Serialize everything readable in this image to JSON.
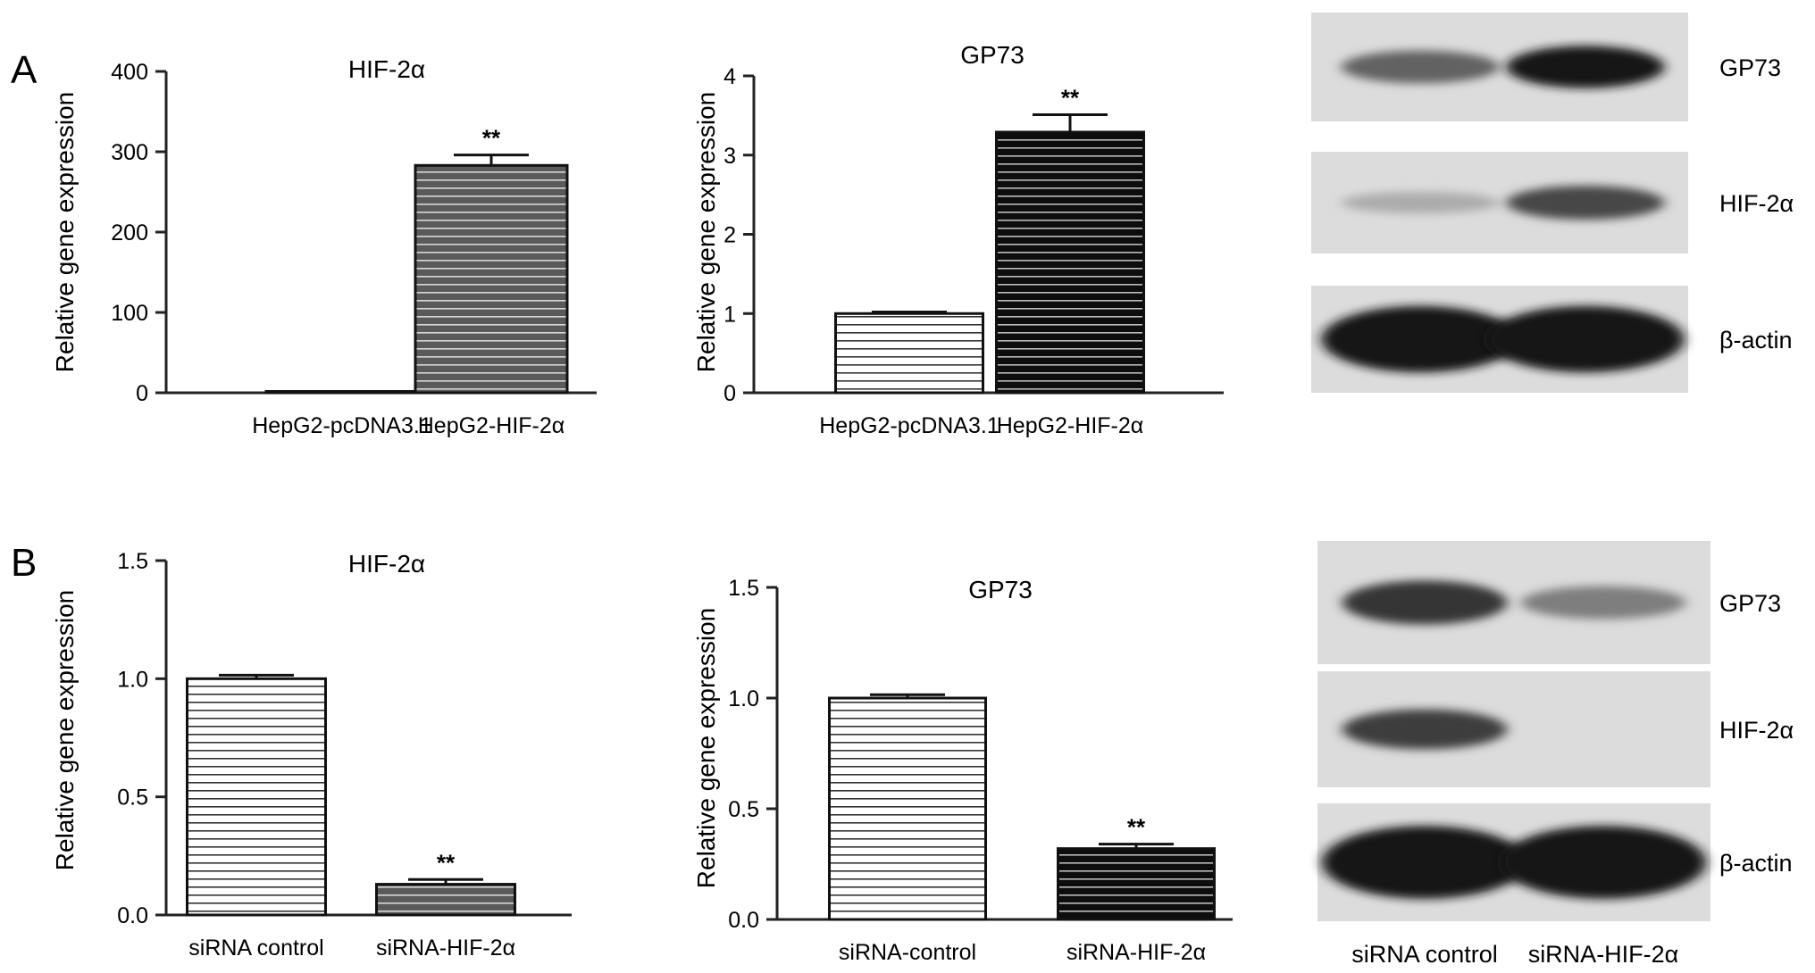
{
  "panels": [
    {
      "letter": "A"
    },
    {
      "letter": "B"
    }
  ],
  "chart_data": [
    {
      "type": "bar",
      "panel": "A",
      "title": "HIF-2α",
      "ylabel": "Relative gene expression",
      "categories": [
        "HepG2-pcDNA3.1",
        "HepG2-HIF-2α"
      ],
      "values": [
        1,
        283
      ],
      "errors": [
        0.5,
        13
      ],
      "significance": [
        "",
        "**"
      ],
      "ylim": [
        0,
        400
      ],
      "yticks": [
        "0",
        "100",
        "200",
        "300",
        "400"
      ],
      "yvalues": [
        0,
        100,
        200,
        300,
        400
      ],
      "bar_colors": [
        "#ffffff",
        "#555555"
      ]
    },
    {
      "type": "bar",
      "panel": "A",
      "title": "GP73",
      "ylabel": "Relative gene expression",
      "categories": [
        "HepG2-pcDNA3.1",
        "HepG2-HIF-2α"
      ],
      "values": [
        1.0,
        3.29
      ],
      "errors": [
        0.02,
        0.22
      ],
      "significance": [
        "",
        "**"
      ],
      "ylim": [
        0,
        4
      ],
      "yticks": [
        "0",
        "1",
        "2",
        "3",
        "4"
      ],
      "yvalues": [
        0,
        1,
        2,
        3,
        4
      ],
      "bar_colors": [
        "#ffffff",
        "#111111"
      ]
    },
    {
      "type": "bar",
      "panel": "B",
      "title": "HIF-2α",
      "ylabel": "Relative gene expression",
      "categories": [
        "siRNA control",
        "siRNA-HIF-2α"
      ],
      "values": [
        1.0,
        0.13
      ],
      "errors": [
        0.015,
        0.02
      ],
      "significance": [
        "",
        "**"
      ],
      "ylim": [
        0,
        1.5
      ],
      "yticks": [
        "0.0",
        "0.5",
        "1.0",
        "1.5"
      ],
      "yvalues": [
        0,
        0.5,
        1.0,
        1.5
      ],
      "bar_colors": [
        "#ffffff",
        "#555555"
      ]
    },
    {
      "type": "bar",
      "panel": "B",
      "title": "GP73",
      "ylabel": "Relative gene expression",
      "categories": [
        "siRNA-control",
        "siRNA-HIF-2α"
      ],
      "values": [
        1.0,
        0.32
      ],
      "errors": [
        0.015,
        0.02
      ],
      "significance": [
        "",
        "**"
      ],
      "ylim": [
        0,
        1.5
      ],
      "yticks": [
        "0.0",
        "0.5",
        "1.0",
        "1.5"
      ],
      "yvalues": [
        0,
        0.5,
        1.0,
        1.5
      ],
      "bar_colors": [
        "#ffffff",
        "#111111"
      ]
    }
  ],
  "blots": [
    {
      "panel": "A",
      "bands": [
        {
          "label": "GP73",
          "intensities": [
            0.55,
            0.95
          ]
        },
        {
          "label": "HIF-2α",
          "intensities": [
            0.15,
            0.7
          ]
        },
        {
          "label": "β-actin",
          "intensities": [
            0.95,
            0.95
          ]
        }
      ],
      "lanes": []
    },
    {
      "panel": "B",
      "bands": [
        {
          "label": "GP73",
          "intensities": [
            0.8,
            0.4
          ]
        },
        {
          "label": "HIF-2α",
          "intensities": [
            0.75,
            0.0
          ]
        },
        {
          "label": "β-actin",
          "intensities": [
            0.95,
            0.95
          ]
        }
      ],
      "lanes": [
        "siRNA control",
        "siRNA-HIF-2α"
      ]
    }
  ]
}
